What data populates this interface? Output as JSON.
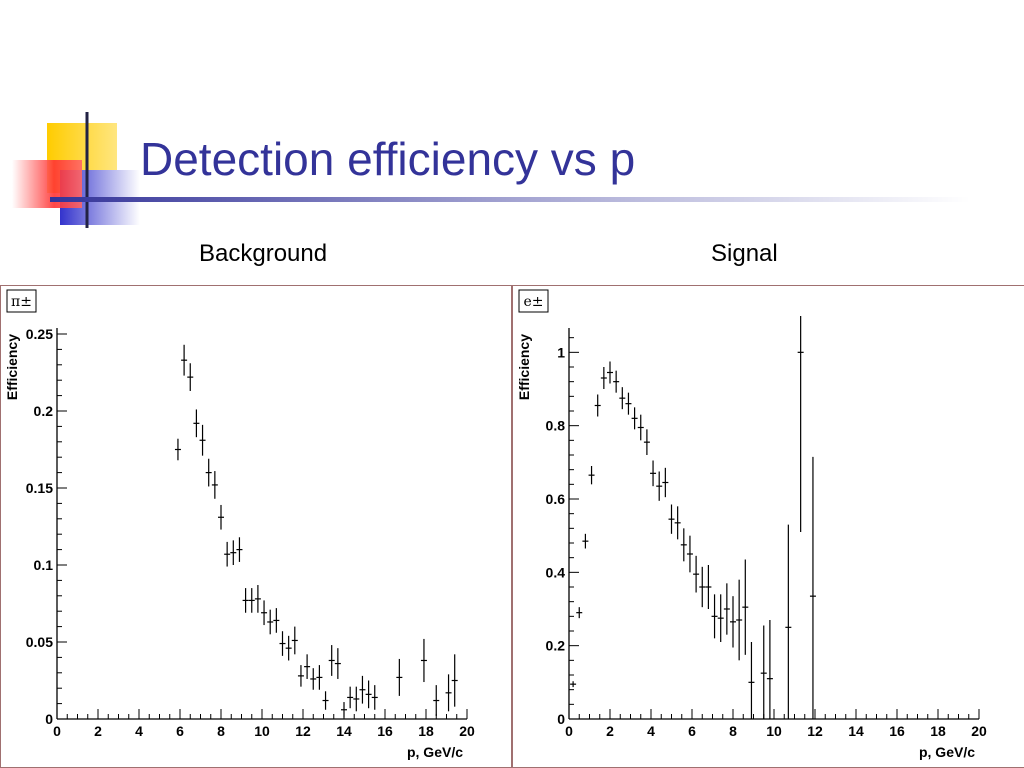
{
  "slide": {
    "title": "Detection efficiency vs p",
    "panel_labels": [
      "Background",
      "Signal"
    ]
  },
  "colors": {
    "title": "#333399",
    "deco_yellow": "#ffcc00",
    "deco_blue": "#3333cc",
    "deco_red": "#ff3333"
  },
  "chart_data": [
    {
      "type": "scatter",
      "tag": "π±",
      "ylabel": "Efficiency",
      "xlabel": "p, GeV/c",
      "xlim": [
        0,
        20
      ],
      "ylim": [
        0,
        0.25
      ],
      "xticks": [
        0,
        2,
        4,
        6,
        8,
        10,
        12,
        14,
        16,
        18,
        20
      ],
      "yticks": [
        0,
        0.05,
        0.1,
        0.15,
        0.2,
        0.25
      ],
      "ytick_labels": [
        "0",
        "0.05",
        "0.1",
        "0.15",
        "0.2",
        "0.25"
      ],
      "points": [
        {
          "x": 5.9,
          "y": 0.175,
          "err": 0.007
        },
        {
          "x": 6.2,
          "y": 0.233,
          "err": 0.01
        },
        {
          "x": 6.5,
          "y": 0.222,
          "err": 0.009
        },
        {
          "x": 6.8,
          "y": 0.192,
          "err": 0.009
        },
        {
          "x": 7.1,
          "y": 0.181,
          "err": 0.01
        },
        {
          "x": 7.4,
          "y": 0.16,
          "err": 0.009
        },
        {
          "x": 7.7,
          "y": 0.152,
          "err": 0.009
        },
        {
          "x": 8.0,
          "y": 0.131,
          "err": 0.008
        },
        {
          "x": 8.3,
          "y": 0.107,
          "err": 0.008
        },
        {
          "x": 8.6,
          "y": 0.108,
          "err": 0.008
        },
        {
          "x": 8.9,
          "y": 0.11,
          "err": 0.008
        },
        {
          "x": 9.2,
          "y": 0.077,
          "err": 0.008
        },
        {
          "x": 9.5,
          "y": 0.077,
          "err": 0.008
        },
        {
          "x": 9.8,
          "y": 0.078,
          "err": 0.009
        },
        {
          "x": 10.1,
          "y": 0.069,
          "err": 0.008
        },
        {
          "x": 10.4,
          "y": 0.063,
          "err": 0.008
        },
        {
          "x": 10.7,
          "y": 0.064,
          "err": 0.008
        },
        {
          "x": 11.0,
          "y": 0.049,
          "err": 0.008
        },
        {
          "x": 11.3,
          "y": 0.046,
          "err": 0.008
        },
        {
          "x": 11.6,
          "y": 0.051,
          "err": 0.009
        },
        {
          "x": 11.9,
          "y": 0.028,
          "err": 0.007
        },
        {
          "x": 12.2,
          "y": 0.034,
          "err": 0.008
        },
        {
          "x": 12.5,
          "y": 0.026,
          "err": 0.007
        },
        {
          "x": 12.8,
          "y": 0.027,
          "err": 0.008
        },
        {
          "x": 13.1,
          "y": 0.012,
          "err": 0.006
        },
        {
          "x": 13.4,
          "y": 0.038,
          "err": 0.01
        },
        {
          "x": 13.7,
          "y": 0.036,
          "err": 0.01
        },
        {
          "x": 14.0,
          "y": 0.006,
          "err": 0.005
        },
        {
          "x": 14.3,
          "y": 0.014,
          "err": 0.007
        },
        {
          "x": 14.6,
          "y": 0.013,
          "err": 0.008
        },
        {
          "x": 14.9,
          "y": 0.019,
          "err": 0.009
        },
        {
          "x": 15.2,
          "y": 0.016,
          "err": 0.009
        },
        {
          "x": 15.5,
          "y": 0.014,
          "err": 0.008
        },
        {
          "x": 16.7,
          "y": 0.027,
          "err": 0.012
        },
        {
          "x": 17.9,
          "y": 0.038,
          "err": 0.014
        },
        {
          "x": 18.5,
          "y": 0.012,
          "err": 0.01
        },
        {
          "x": 19.1,
          "y": 0.017,
          "err": 0.012
        },
        {
          "x": 19.4,
          "y": 0.025,
          "err": 0.017
        }
      ]
    },
    {
      "type": "scatter",
      "tag": "e±",
      "ylabel": "Efficiency",
      "xlabel": "p, GeV/c",
      "xlim": [
        0,
        20
      ],
      "ylim": [
        0,
        1.05
      ],
      "xticks": [
        0,
        2,
        4,
        6,
        8,
        10,
        12,
        14,
        16,
        18,
        20
      ],
      "yticks": [
        0,
        0.2,
        0.4,
        0.6,
        0.8,
        1
      ],
      "ytick_labels": [
        "0",
        "0.2",
        "0.4",
        "0.6",
        "0.8",
        "1"
      ],
      "points": [
        {
          "x": 0.2,
          "y": 0.095,
          "err": 0.008
        },
        {
          "x": 0.5,
          "y": 0.29,
          "err": 0.015
        },
        {
          "x": 0.8,
          "y": 0.485,
          "err": 0.02
        },
        {
          "x": 1.1,
          "y": 0.665,
          "err": 0.025
        },
        {
          "x": 1.4,
          "y": 0.855,
          "err": 0.03
        },
        {
          "x": 1.7,
          "y": 0.93,
          "err": 0.03
        },
        {
          "x": 2.0,
          "y": 0.945,
          "err": 0.03
        },
        {
          "x": 2.3,
          "y": 0.92,
          "err": 0.03
        },
        {
          "x": 2.6,
          "y": 0.875,
          "err": 0.03
        },
        {
          "x": 2.9,
          "y": 0.86,
          "err": 0.03
        },
        {
          "x": 3.2,
          "y": 0.82,
          "err": 0.03
        },
        {
          "x": 3.5,
          "y": 0.795,
          "err": 0.035
        },
        {
          "x": 3.8,
          "y": 0.755,
          "err": 0.035
        },
        {
          "x": 4.1,
          "y": 0.67,
          "err": 0.035
        },
        {
          "x": 4.4,
          "y": 0.635,
          "err": 0.04
        },
        {
          "x": 4.7,
          "y": 0.645,
          "err": 0.04
        },
        {
          "x": 5.0,
          "y": 0.545,
          "err": 0.04
        },
        {
          "x": 5.3,
          "y": 0.535,
          "err": 0.045
        },
        {
          "x": 5.6,
          "y": 0.475,
          "err": 0.045
        },
        {
          "x": 5.9,
          "y": 0.45,
          "err": 0.05
        },
        {
          "x": 6.2,
          "y": 0.395,
          "err": 0.05
        },
        {
          "x": 6.5,
          "y": 0.36,
          "err": 0.055
        },
        {
          "x": 6.8,
          "y": 0.36,
          "err": 0.06
        },
        {
          "x": 7.1,
          "y": 0.28,
          "err": 0.06
        },
        {
          "x": 7.4,
          "y": 0.275,
          "err": 0.065
        },
        {
          "x": 7.7,
          "y": 0.3,
          "err": 0.07
        },
        {
          "x": 8.0,
          "y": 0.265,
          "err": 0.07
        },
        {
          "x": 8.3,
          "y": 0.27,
          "err": 0.11
        },
        {
          "x": 8.6,
          "y": 0.305,
          "err": 0.13
        },
        {
          "x": 8.9,
          "y": 0.1,
          "err": 0.11
        },
        {
          "x": 9.5,
          "y": 0.125,
          "err": 0.13
        },
        {
          "x": 9.8,
          "y": 0.11,
          "err": 0.16
        },
        {
          "x": 10.7,
          "y": 0.25,
          "err": 0.28
        },
        {
          "x": 11.3,
          "y": 1.0,
          "err": 0.49
        },
        {
          "x": 11.9,
          "y": 0.335,
          "err": 0.38
        }
      ]
    }
  ]
}
